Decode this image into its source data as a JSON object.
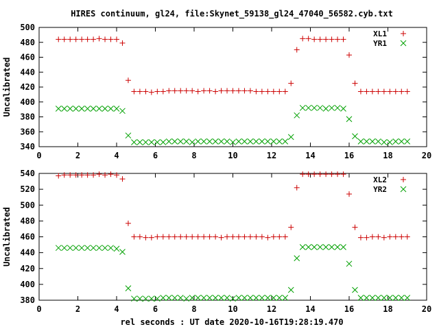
{
  "chart_data": {
    "type": "scatter",
    "title": "HIRES continuum, gl24, file:Skynet_59138_gl24_47040_56582.cyb.txt",
    "xlabel": "rel seconds : UT date 2020-10-16T19:28:19.470",
    "panels": [
      {
        "ylabel": "Uncalibrated",
        "xlim": [
          0,
          20
        ],
        "ylim": [
          340,
          500
        ],
        "xticks": [
          0,
          2,
          4,
          6,
          8,
          10,
          12,
          14,
          16,
          18,
          20
        ],
        "yticks": [
          340,
          360,
          380,
          400,
          420,
          440,
          460,
          480,
          500
        ],
        "series": [
          {
            "name": "XL1",
            "marker": "+",
            "color": "#cc0000",
            "x": [
              1.0,
              1.3,
              1.6,
              1.9,
              2.2,
              2.5,
              2.8,
              3.1,
              3.4,
              3.7,
              4.0,
              4.3,
              4.6,
              4.9,
              5.2,
              5.5,
              5.8,
              6.1,
              6.4,
              6.7,
              7.0,
              7.3,
              7.6,
              7.9,
              8.2,
              8.5,
              8.8,
              9.1,
              9.4,
              9.7,
              10.0,
              10.3,
              10.6,
              10.9,
              11.2,
              11.5,
              11.8,
              12.1,
              12.4,
              12.7,
              13.0,
              13.3,
              13.6,
              13.9,
              14.2,
              14.5,
              14.8,
              15.1,
              15.4,
              15.7,
              16.0,
              16.3,
              16.6,
              16.9,
              17.2,
              17.5,
              17.8,
              18.1,
              18.4,
              18.7,
              19.0
            ],
            "y": [
              484,
              484,
              484,
              484,
              484,
              484,
              484,
              485,
              484,
              484,
              484,
              479,
              429,
              414,
              414,
              414,
              413,
              414,
              414,
              415,
              415,
              415,
              415,
              415,
              414,
              415,
              415,
              414,
              415,
              415,
              415,
              415,
              415,
              415,
              414,
              414,
              414,
              414,
              414,
              414,
              425,
              470,
              485,
              485,
              484,
              484,
              484,
              484,
              484,
              484,
              463,
              425,
              414,
              414,
              414,
              414,
              414,
              414,
              414,
              414,
              414
            ]
          },
          {
            "name": "YR1",
            "marker": "x",
            "color": "#00a000",
            "x": [
              1.0,
              1.3,
              1.6,
              1.9,
              2.2,
              2.5,
              2.8,
              3.1,
              3.4,
              3.7,
              4.0,
              4.3,
              4.6,
              4.9,
              5.2,
              5.5,
              5.8,
              6.1,
              6.4,
              6.7,
              7.0,
              7.3,
              7.6,
              7.9,
              8.2,
              8.5,
              8.8,
              9.1,
              9.4,
              9.7,
              10.0,
              10.3,
              10.6,
              10.9,
              11.2,
              11.5,
              11.8,
              12.1,
              12.4,
              12.7,
              13.0,
              13.3,
              13.6,
              13.9,
              14.2,
              14.5,
              14.8,
              15.1,
              15.4,
              15.7,
              16.0,
              16.3,
              16.6,
              16.9,
              17.2,
              17.5,
              17.8,
              18.1,
              18.4,
              18.7,
              19.0
            ],
            "y": [
              391,
              391,
              391,
              391,
              391,
              391,
              391,
              391,
              391,
              391,
              391,
              388,
              355,
              346,
              346,
              346,
              346,
              346,
              346,
              347,
              347,
              347,
              347,
              346,
              347,
              347,
              347,
              347,
              347,
              347,
              346,
              347,
              347,
              347,
              347,
              347,
              347,
              347,
              347,
              347,
              353,
              382,
              392,
              392,
              392,
              392,
              391,
              392,
              392,
              391,
              377,
              354,
              347,
              347,
              347,
              347,
              346,
              346,
              347,
              347,
              347
            ]
          }
        ]
      },
      {
        "ylabel": "Uncalibrated",
        "xlim": [
          0,
          20
        ],
        "ylim": [
          380,
          540
        ],
        "xticks": [
          0,
          2,
          4,
          6,
          8,
          10,
          12,
          14,
          16,
          18,
          20
        ],
        "yticks": [
          380,
          400,
          420,
          440,
          460,
          480,
          500,
          520,
          540
        ],
        "series": [
          {
            "name": "XL2",
            "marker": "+",
            "color": "#cc0000",
            "x": [
              1.0,
              1.3,
              1.6,
              1.9,
              2.2,
              2.5,
              2.8,
              3.1,
              3.4,
              3.7,
              4.0,
              4.3,
              4.6,
              4.9,
              5.2,
              5.5,
              5.8,
              6.1,
              6.4,
              6.7,
              7.0,
              7.3,
              7.6,
              7.9,
              8.2,
              8.5,
              8.8,
              9.1,
              9.4,
              9.7,
              10.0,
              10.3,
              10.6,
              10.9,
              11.2,
              11.5,
              11.8,
              12.1,
              12.4,
              12.7,
              13.0,
              13.3,
              13.6,
              13.9,
              14.2,
              14.5,
              14.8,
              15.1,
              15.4,
              15.7,
              16.0,
              16.3,
              16.6,
              16.9,
              17.2,
              17.5,
              17.8,
              18.1,
              18.4,
              18.7,
              19.0
            ],
            "y": [
              537,
              538,
              538,
              538,
              538,
              538,
              538,
              539,
              538,
              539,
              538,
              533,
              477,
              460,
              460,
              459,
              459,
              460,
              460,
              460,
              460,
              460,
              460,
              460,
              460,
              460,
              460,
              460,
              459,
              460,
              460,
              460,
              460,
              460,
              460,
              460,
              459,
              460,
              460,
              460,
              472,
              522,
              539,
              539,
              539,
              539,
              539,
              539,
              539,
              539,
              514,
              472,
              459,
              459,
              460,
              460,
              459,
              460,
              460,
              460,
              460
            ]
          },
          {
            "name": "YR2",
            "marker": "x",
            "color": "#00a000",
            "x": [
              1.0,
              1.3,
              1.6,
              1.9,
              2.2,
              2.5,
              2.8,
              3.1,
              3.4,
              3.7,
              4.0,
              4.3,
              4.6,
              4.9,
              5.2,
              5.5,
              5.8,
              6.1,
              6.4,
              6.7,
              7.0,
              7.3,
              7.6,
              7.9,
              8.2,
              8.5,
              8.8,
              9.1,
              9.4,
              9.7,
              10.0,
              10.3,
              10.6,
              10.9,
              11.2,
              11.5,
              11.8,
              12.1,
              12.4,
              12.7,
              13.0,
              13.3,
              13.6,
              13.9,
              14.2,
              14.5,
              14.8,
              15.1,
              15.4,
              15.7,
              16.0,
              16.3,
              16.6,
              16.9,
              17.2,
              17.5,
              17.8,
              18.1,
              18.4,
              18.7,
              19.0
            ],
            "y": [
              446,
              446,
              446,
              446,
              446,
              446,
              446,
              446,
              446,
              446,
              445,
              441,
              395,
              382,
              382,
              382,
              382,
              382,
              383,
              383,
              383,
              383,
              382,
              383,
              383,
              383,
              383,
              383,
              383,
              383,
              382,
              383,
              383,
              383,
              383,
              383,
              383,
              383,
              383,
              383,
              393,
              433,
              447,
              447,
              447,
              447,
              447,
              447,
              447,
              447,
              426,
              393,
              383,
              383,
              383,
              383,
              383,
              383,
              383,
              383,
              383
            ]
          }
        ]
      }
    ]
  }
}
